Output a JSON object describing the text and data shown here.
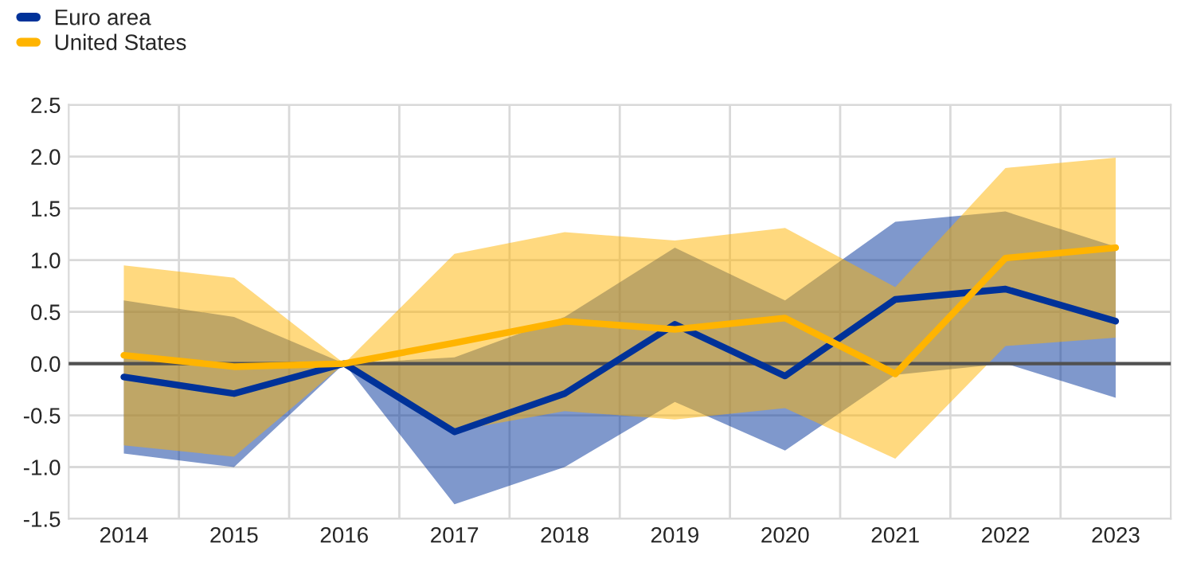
{
  "chart_data": {
    "type": "line",
    "categories": [
      "2014",
      "2015",
      "2016",
      "2017",
      "2018",
      "2019",
      "2020",
      "2021",
      "2022",
      "2023"
    ],
    "series": [
      {
        "name": "Euro area",
        "color": "#003299",
        "values": [
          -0.13,
          -0.29,
          0,
          -0.66,
          -0.29,
          0.38,
          -0.12,
          0.62,
          0.72,
          0.41
        ],
        "lower": [
          -0.87,
          -1.0,
          0,
          -1.36,
          -1.0,
          -0.37,
          -0.84,
          -0.11,
          0.0,
          -0.33
        ],
        "upper": [
          0.61,
          0.45,
          0,
          0.06,
          0.45,
          1.12,
          0.61,
          1.37,
          1.47,
          1.13
        ]
      },
      {
        "name": "United States",
        "color": "#ffb400",
        "values": [
          0.08,
          -0.03,
          0,
          0.2,
          0.41,
          0.33,
          0.44,
          -0.1,
          1.02,
          1.12
        ],
        "lower": [
          -0.79,
          -0.9,
          0,
          -0.65,
          -0.46,
          -0.54,
          -0.43,
          -0.92,
          0.17,
          0.25
        ],
        "upper": [
          0.95,
          0.83,
          0,
          1.06,
          1.27,
          1.19,
          1.31,
          0.74,
          1.89,
          1.99
        ]
      }
    ],
    "ylim": [
      -1.5,
      2.5
    ],
    "yticks": [
      {
        "value": -1.5,
        "label": "-1.5"
      },
      {
        "value": -1.0,
        "label": "-1.0"
      },
      {
        "value": -0.5,
        "label": "-0.5"
      },
      {
        "value": 0,
        "label": "0.0"
      },
      {
        "value": 0.5,
        "label": "0.5"
      },
      {
        "value": 1.0,
        "label": "1.0"
      },
      {
        "value": 1.5,
        "label": "1.5"
      },
      {
        "value": 2.0,
        "label": "2.0"
      },
      {
        "value": 2.5,
        "label": "2.5"
      }
    ],
    "ref_lines": [
      {
        "axis": "y",
        "value": 0,
        "color": "#505050"
      }
    ],
    "grid": true,
    "legend": "top left",
    "marker": "none",
    "line_style": "solid"
  }
}
